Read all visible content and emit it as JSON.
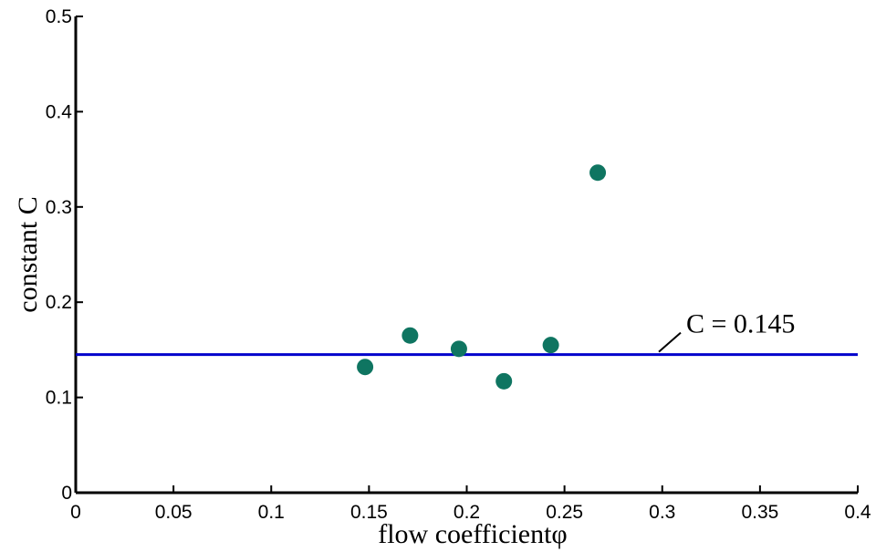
{
  "chart_data": {
    "type": "scatter",
    "xlabel": "flow coefficientφ",
    "ylabel": "constant C",
    "series": [
      {
        "color": "#0f7561",
        "x": [
          0.148,
          0.171,
          0.196,
          0.219,
          0.243,
          0.267
        ],
        "values": [
          0.132,
          0.165,
          0.151,
          0.117,
          0.155,
          0.336
        ]
      }
    ],
    "reference_line": {
      "value": 0.145,
      "label": "C = 0.145",
      "color": "#0000cc"
    },
    "xlim": [
      0,
      0.4
    ],
    "xticks": [
      0,
      0.05,
      0.1,
      0.15,
      0.2,
      0.25,
      0.3,
      0.35,
      0.4
    ],
    "ylim": [
      0,
      0.5
    ],
    "yticks": [
      0,
      0.1,
      0.2,
      0.3,
      0.4,
      0.5
    ],
    "grid": false
  }
}
